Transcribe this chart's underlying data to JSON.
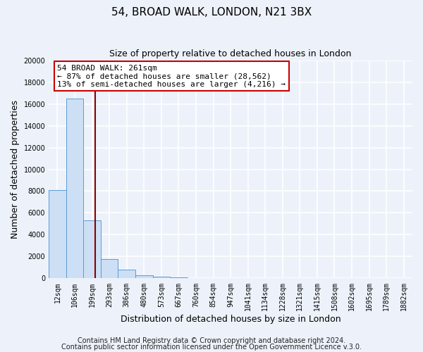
{
  "title": "54, BROAD WALK, LONDON, N21 3BX",
  "subtitle": "Size of property relative to detached houses in London",
  "xlabel": "Distribution of detached houses by size in London",
  "ylabel": "Number of detached properties",
  "bar_labels": [
    "12sqm",
    "106sqm",
    "199sqm",
    "293sqm",
    "386sqm",
    "480sqm",
    "573sqm",
    "667sqm",
    "760sqm",
    "854sqm",
    "947sqm",
    "1041sqm",
    "1134sqm",
    "1228sqm",
    "1321sqm",
    "1415sqm",
    "1508sqm",
    "1602sqm",
    "1695sqm",
    "1789sqm",
    "1882sqm"
  ],
  "bar_values": [
    8100,
    16500,
    5300,
    1750,
    800,
    300,
    150,
    100,
    50,
    0,
    0,
    0,
    0,
    0,
    0,
    0,
    0,
    0,
    0,
    0,
    0
  ],
  "bar_color": "#ccdff5",
  "bar_edge_color": "#5b9bd5",
  "vline_x": 2.62,
  "vline_color": "#8b0000",
  "annotation_text": "54 BROAD WALK: 261sqm\n← 87% of detached houses are smaller (28,562)\n13% of semi-detached houses are larger (4,216) →",
  "annotation_box_color": "#ffffff",
  "annotation_box_edge": "#cc0000",
  "ylim": [
    0,
    20000
  ],
  "yticks": [
    0,
    2000,
    4000,
    6000,
    8000,
    10000,
    12000,
    14000,
    16000,
    18000,
    20000
  ],
  "footer1": "Contains HM Land Registry data © Crown copyright and database right 2024.",
  "footer2": "Contains public sector information licensed under the Open Government Licence v.3.0.",
  "bg_color": "#edf2fa",
  "plot_bg_color": "#edf2fa",
  "grid_color": "#ffffff",
  "title_fontsize": 11,
  "subtitle_fontsize": 9,
  "axis_label_fontsize": 9,
  "tick_fontsize": 7,
  "footer_fontsize": 7,
  "annotation_fontsize": 8
}
